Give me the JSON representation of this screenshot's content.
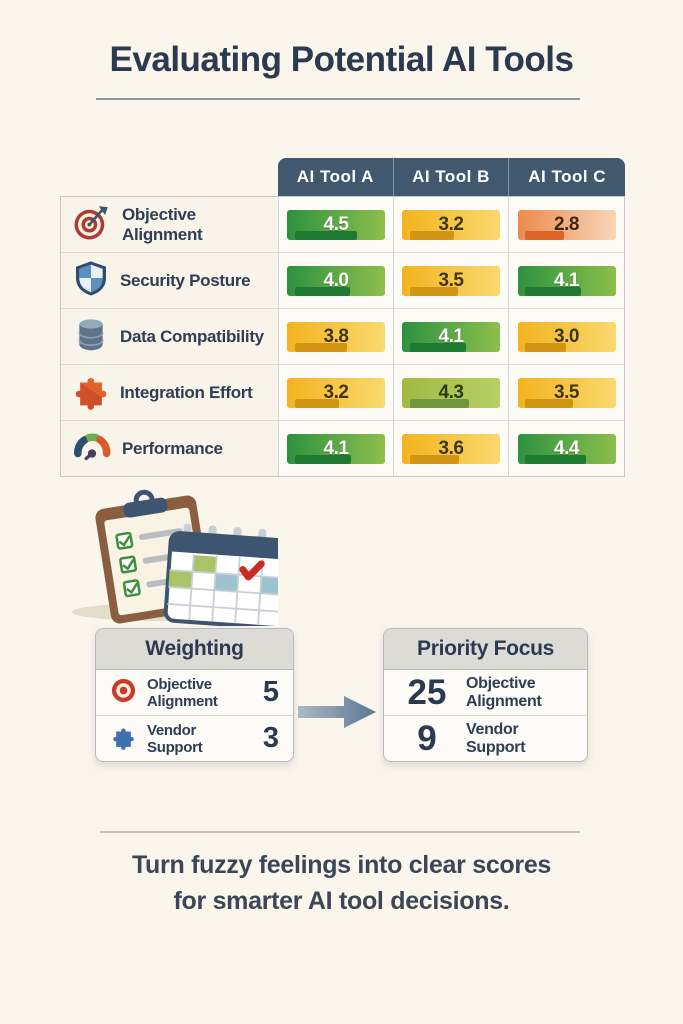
{
  "page": {
    "title": "Evaluating Potential AI Tools",
    "tagline": [
      "Turn fuzzy feelings into clear scores",
      "for smarter AI tool decisions."
    ]
  },
  "table": {
    "columns": [
      "AI Tool A",
      "AI Tool B",
      "AI Tool C"
    ],
    "rows": [
      {
        "label": "Objective Alignment",
        "icon": "target-icon",
        "scores": [
          {
            "value": "4.5",
            "color": "green"
          },
          {
            "value": "3.2",
            "color": "gold"
          },
          {
            "value": "2.8",
            "color": "orange"
          }
        ]
      },
      {
        "label": "Security Posture",
        "icon": "shield-icon",
        "scores": [
          {
            "value": "4.0",
            "color": "green"
          },
          {
            "value": "3.5",
            "color": "gold"
          },
          {
            "value": "4.1",
            "color": "green"
          }
        ]
      },
      {
        "label": "Data Compatibility",
        "icon": "database-icon",
        "scores": [
          {
            "value": "3.8",
            "color": "gold"
          },
          {
            "value": "4.1",
            "color": "green"
          },
          {
            "value": "3.0",
            "color": "gold"
          }
        ]
      },
      {
        "label": "Integration Effort",
        "icon": "puzzle-icon",
        "scores": [
          {
            "value": "3.2",
            "color": "gold"
          },
          {
            "value": "4.3",
            "color": "yellowgreen"
          },
          {
            "value": "3.5",
            "color": "gold"
          }
        ]
      },
      {
        "label": "Performance",
        "icon": "gauge-icon",
        "scores": [
          {
            "value": "4.1",
            "color": "green"
          },
          {
            "value": "3.6",
            "color": "gold"
          },
          {
            "value": "4.4",
            "color": "green"
          }
        ]
      }
    ]
  },
  "weighting": {
    "title": "Weighting",
    "rows": [
      {
        "label": "Objective Alignment",
        "icon": "target-icon",
        "value": "5"
      },
      {
        "label": "Vendor Support",
        "icon": "puzzle-icon",
        "value": "3"
      }
    ]
  },
  "priority": {
    "title": "Priority Focus",
    "rows": [
      {
        "value": "25",
        "label": "Objective Alignment"
      },
      {
        "value": "9",
        "label": "Vendor Support"
      }
    ]
  },
  "illustration": {
    "icons": [
      "clipboard-checklist-icon",
      "calendar-icon"
    ],
    "arrow": "right-arrow-icon"
  },
  "colors": {
    "background": "#faf6ec",
    "header_navy": "#41586f",
    "title_navy": "#2c3a50",
    "score_green": "#2e9140",
    "score_gold": "#f3b31f",
    "score_orange": "#ec8a4d",
    "accent_red": "#b03a30",
    "accent_blue": "#3e6fae"
  },
  "chart_data": {
    "type": "table",
    "title": "Evaluating Potential AI Tools",
    "columns": [
      "AI Tool A",
      "AI Tool B",
      "AI Tool C"
    ],
    "rows": [
      "Objective Alignment",
      "Security Posture",
      "Data Compatibility",
      "Integration Effort",
      "Performance"
    ],
    "values": [
      [
        4.5,
        3.2,
        2.8
      ],
      [
        4.0,
        3.5,
        4.1
      ],
      [
        3.8,
        4.1,
        3.0
      ],
      [
        3.2,
        4.3,
        3.5
      ],
      [
        4.1,
        3.6,
        4.4
      ]
    ],
    "scale_max": 5,
    "weighting": [
      {
        "criterion": "Objective Alignment",
        "weight": 5,
        "priority_focus": 25
      },
      {
        "criterion": "Vendor Support",
        "weight": 3,
        "priority_focus": 9
      }
    ]
  }
}
